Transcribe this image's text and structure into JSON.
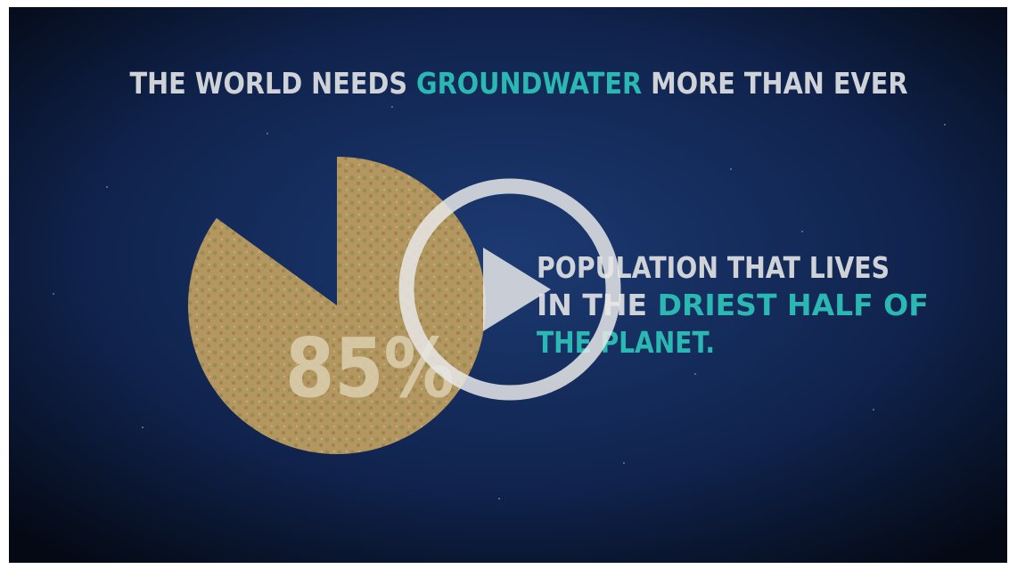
{
  "title": {
    "before": "THE WORLD NEEDS",
    "highlight": "GROUNDWATER",
    "after": "MORE THAN EVER"
  },
  "stat": {
    "value": 85,
    "label": "85%"
  },
  "caption": {
    "line1": "POPULATION THAT LIVES",
    "line2_plain": "IN THE",
    "line2_highlight": "DRIEST HALF OF",
    "line3": "THE PLANET."
  }
}
